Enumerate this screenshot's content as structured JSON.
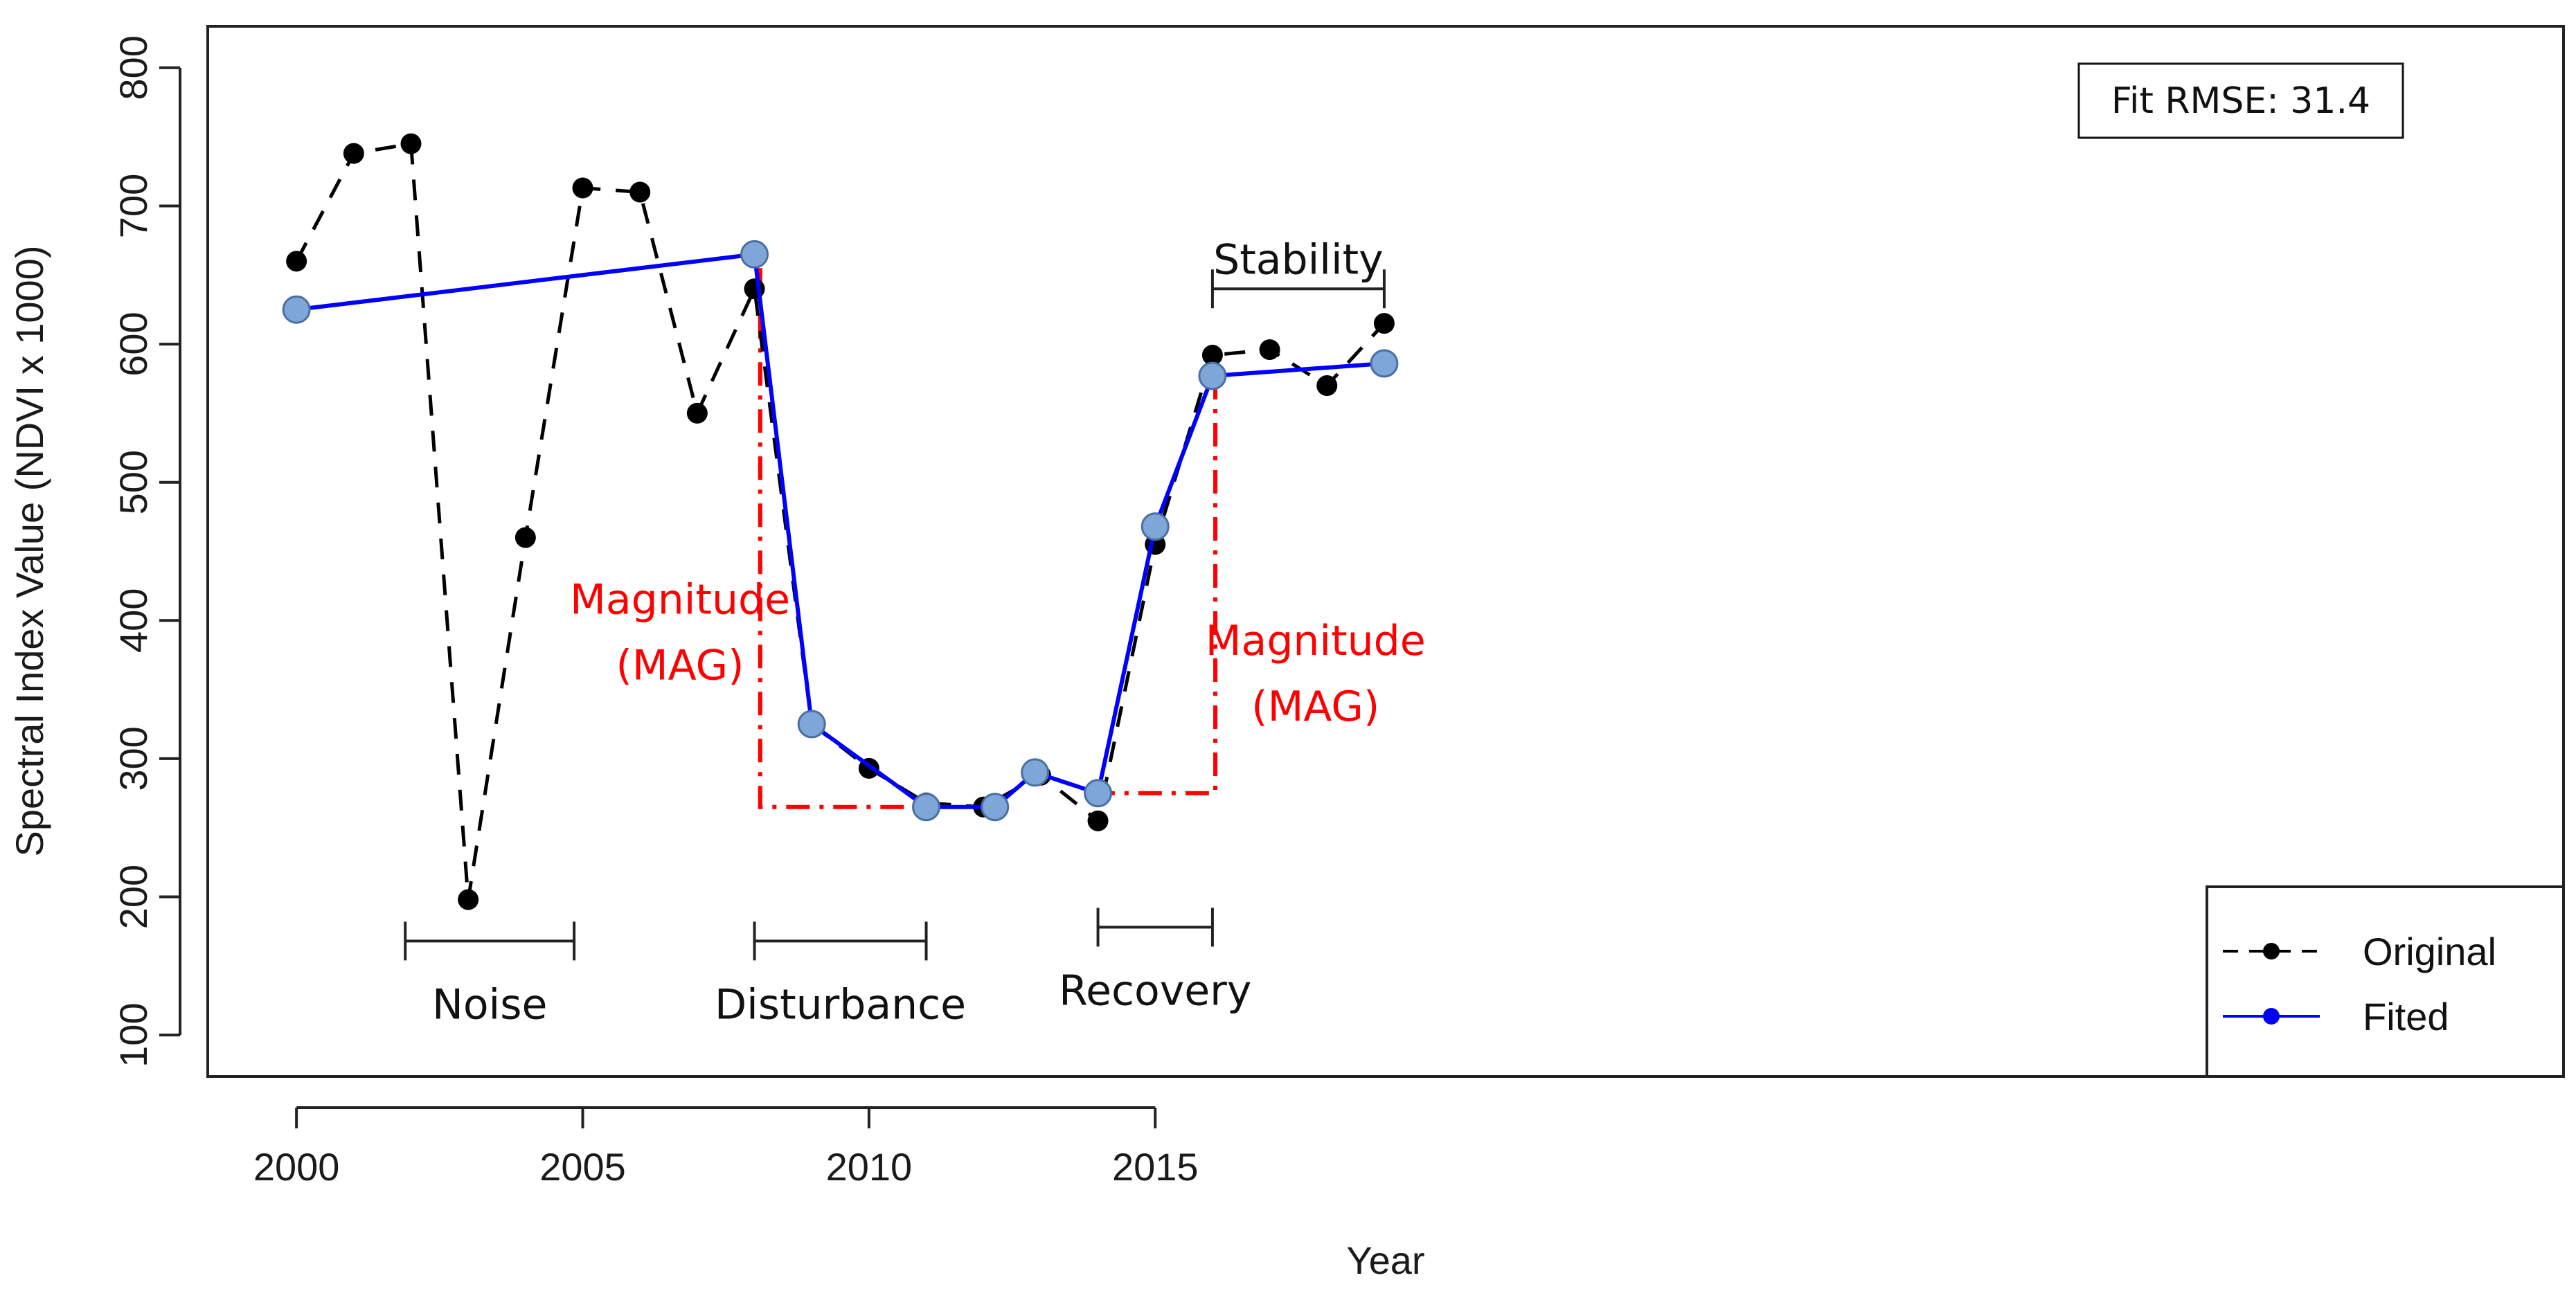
{
  "chart_data": {
    "type": "line",
    "xlabel": "Year",
    "ylabel": "Spectral Index Value (NDVI x 1000)",
    "xlim": [
      1998.45,
      2039.6
    ],
    "ylim": [
      70,
      830
    ],
    "x_ticks": [
      2000,
      2005,
      2010,
      2015
    ],
    "y_ticks": [
      100,
      200,
      300,
      400,
      500,
      600,
      700,
      800
    ],
    "series": [
      {
        "name": "Original",
        "style": "dashed-black-points",
        "x": [
          2000,
          2001,
          2002,
          2003,
          2004,
          2005,
          2006,
          2007,
          2008,
          2009,
          2010,
          2011,
          2012,
          2013,
          2014,
          2015,
          2016,
          2017,
          2018,
          2019
        ],
        "values": [
          660,
          738,
          745,
          198,
          460,
          713,
          710,
          550,
          640,
          325,
          293,
          268,
          265,
          288,
          255,
          455,
          592,
          596,
          570,
          615
        ]
      },
      {
        "name": "Fited",
        "style": "solid-blue-vertices",
        "x": [
          2000,
          2008,
          2009,
          2011,
          2012.2,
          2012.9,
          2014,
          2015,
          2016,
          2019
        ],
        "values": [
          625,
          665,
          325,
          265,
          265,
          290,
          275,
          468,
          577,
          586
        ]
      }
    ],
    "segments": [
      {
        "label": "Noise",
        "x_start": 2001.9,
        "x_end": 2004.85,
        "y": 168
      },
      {
        "label": "Disturbance",
        "x_start": 2008,
        "x_end": 2011,
        "y": 168
      },
      {
        "label": "Recovery",
        "x_start": 2014,
        "x_end": 2016,
        "y": 178
      },
      {
        "label": "Stability",
        "x_start": 2016,
        "x_end": 2019,
        "y": 640
      }
    ],
    "annotations": [
      {
        "line1": "Magnitude",
        "line2": "(MAG)",
        "color": "#ff0000",
        "x_text": 2006.7,
        "y_text": 405
      },
      {
        "line1": "Magnitude",
        "line2": "(MAG)",
        "color": "#ff0000",
        "x_text": 2017.8,
        "y_text": 375
      }
    ],
    "magnitude_guides": [
      {
        "x_vertical": 2008.1,
        "y_top": 655,
        "y_bottom": 265,
        "x_end": 2011.1
      },
      {
        "x_vertical": 2016.05,
        "y_top": 577,
        "y_bottom": 275,
        "x_end": 2014.0
      }
    ],
    "rmse_label": "Fit RMSE: 31.4",
    "legend": {
      "position": "bottom-right",
      "entries": [
        "Original",
        "Fited"
      ]
    },
    "colors": {
      "original": "#000000",
      "fitted_line": "#0000ff",
      "fitted_marker": "#7ea6d8",
      "fitted_marker_stroke": "#4a6fa0",
      "legend_fitted_marker": "#0000ff",
      "magnitude": "#ff0000"
    }
  }
}
